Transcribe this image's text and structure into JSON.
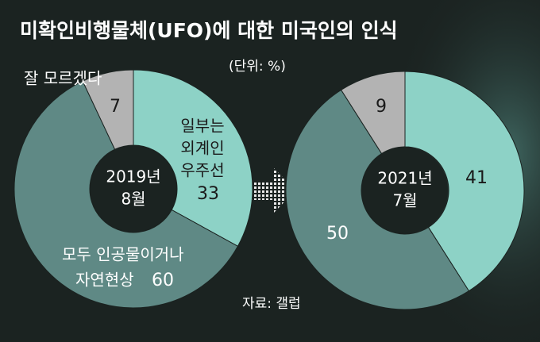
{
  "title": "미확인비행물체(UFO)에 대한 미국인의 인식",
  "unit": "(단위: %)",
  "source": "자료: 갤럽",
  "chart_data": [
    {
      "type": "donut",
      "center_label": [
        "2019년",
        "8월"
      ],
      "categories": [
        [
          "일부는",
          "외계인",
          "우주선"
        ],
        [
          "모두 인공물이거나",
          "자연현상"
        ],
        [
          "잘 모르겠다"
        ]
      ],
      "values": [
        33,
        60,
        7
      ],
      "colors": [
        "#8dd2c6",
        "#5f8985",
        "#b3b3b3"
      ]
    },
    {
      "type": "donut",
      "center_label": [
        "2021년",
        "7월"
      ],
      "values": [
        41,
        50,
        9
      ],
      "colors": [
        "#8dd2c6",
        "#5f8985",
        "#b3b3b3"
      ]
    }
  ]
}
